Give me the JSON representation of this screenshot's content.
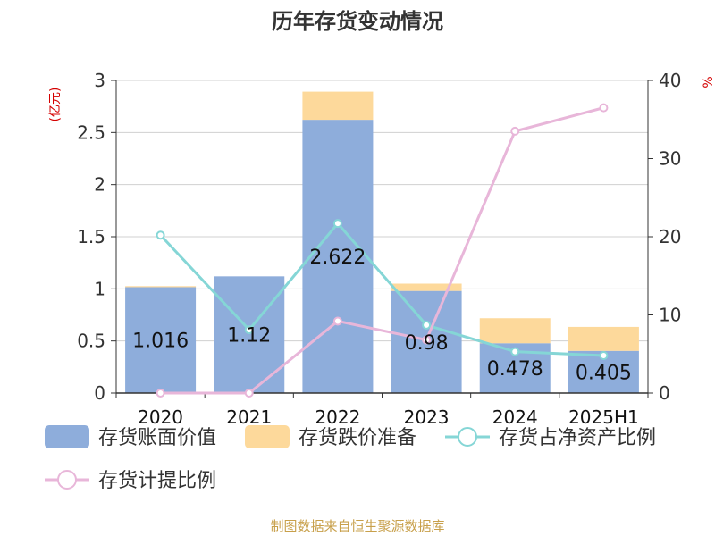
{
  "chart_data": {
    "type": "bar",
    "title": "历年存货变动情况",
    "categories": [
      "2020",
      "2021",
      "2022",
      "2023",
      "2024",
      "2025H1"
    ],
    "left_axis": {
      "unit": "(亿元)",
      "ylim": [
        0,
        3
      ],
      "ticks": [
        "0",
        "0.5",
        "1",
        "1.5",
        "2",
        "2.5",
        "3"
      ]
    },
    "right_axis": {
      "unit": "%",
      "ylim": [
        0,
        40
      ],
      "ticks": [
        "0",
        "10",
        "20",
        "30",
        "40"
      ]
    },
    "series": [
      {
        "name": "存货账面价值",
        "kind": "bar",
        "color": "#8eaddb",
        "axis": "left",
        "values": [
          1.016,
          1.12,
          2.622,
          0.98,
          0.478,
          0.405
        ],
        "labels": [
          "1.016",
          "1.12",
          "2.622",
          "0.98",
          "0.478",
          "0.405"
        ]
      },
      {
        "name": "存货跌价准备",
        "kind": "bar",
        "color": "#fdd99b",
        "axis": "left",
        "stacked": true,
        "values": [
          0.01,
          0.0,
          0.27,
          0.07,
          0.24,
          0.23
        ]
      },
      {
        "name": "存货占净资产比例",
        "kind": "line",
        "color": "#85d6d6",
        "axis": "right",
        "values": [
          20.2,
          8.1,
          21.7,
          8.7,
          5.3,
          4.8
        ]
      },
      {
        "name": "存货计提比例",
        "kind": "line",
        "color": "#e8b6d9",
        "axis": "right",
        "values": [
          0.0,
          0.0,
          9.2,
          6.8,
          33.5,
          36.5
        ]
      }
    ],
    "grid": true,
    "legend_position": "bottom"
  },
  "source": "制图数据来自恒生聚源数据库"
}
